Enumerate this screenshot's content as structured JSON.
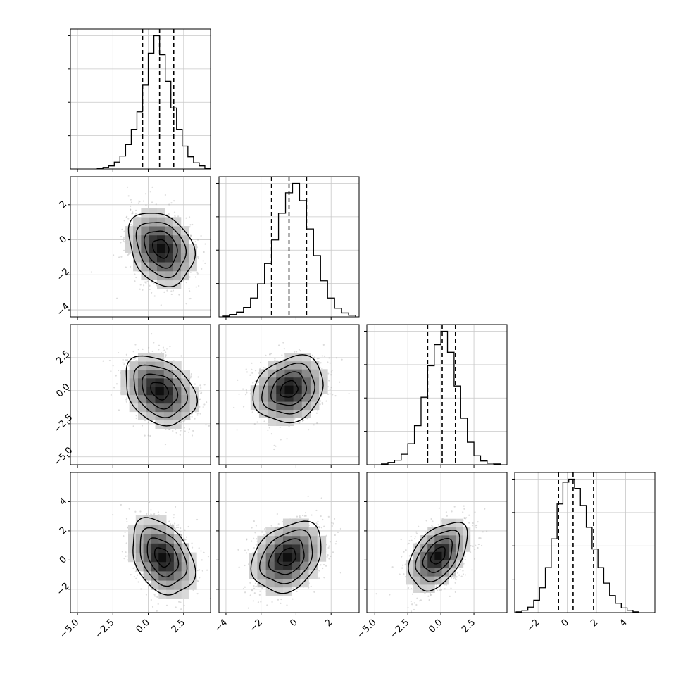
{
  "chart_data": {
    "type": "corner",
    "grid": true,
    "parameters": [
      {
        "ticks": [
          -5.0,
          -2.5,
          0.0,
          2.5
        ],
        "tick_labels": [
          "−5.0",
          "−2.5",
          "0.0",
          "2.5"
        ],
        "quantiles": [
          -0.4,
          0.8,
          1.8
        ],
        "hist": {
          "edges": [
            -3.6,
            -3.2,
            -2.8,
            -2.4,
            -2.0,
            -1.6,
            -1.2,
            -0.8,
            -0.4,
            0.0,
            0.4,
            0.8,
            1.2,
            1.6,
            2.0,
            2.4,
            2.8,
            3.2,
            3.6,
            4.0,
            4.4
          ],
          "counts": [
            1,
            2,
            4,
            9,
            17,
            32,
            52,
            75,
            110,
            152,
            175,
            150,
            115,
            80,
            52,
            30,
            16,
            8,
            4,
            1
          ]
        }
      },
      {
        "ticks": [
          -4,
          -2,
          0,
          2
        ],
        "tick_labels": [
          "−4",
          "−2",
          "0",
          "2"
        ],
        "quantiles": [
          -1.4,
          -0.4,
          0.6
        ],
        "hist": {
          "edges": [
            -4.2,
            -3.8,
            -3.4,
            -3.0,
            -2.6,
            -2.2,
            -1.8,
            -1.4,
            -1.0,
            -0.6,
            -0.2,
            0.2,
            0.6,
            1.0,
            1.4,
            1.8,
            2.2,
            2.6,
            3.0,
            3.4
          ],
          "counts": [
            1,
            3,
            6,
            12,
            24,
            42,
            68,
            98,
            132,
            158,
            170,
            148,
            112,
            78,
            46,
            24,
            11,
            5,
            2
          ]
        }
      },
      {
        "ticks": [
          -5.0,
          -2.5,
          0.0,
          2.5
        ],
        "tick_labels": [
          "−5.0",
          "−2.5",
          "0.0",
          "2.5"
        ],
        "quantiles": [
          -1.0,
          0.1,
          1.1
        ],
        "hist": {
          "edges": [
            -4.5,
            -4.0,
            -3.5,
            -3.0,
            -2.5,
            -2.0,
            -1.5,
            -1.0,
            -0.5,
            0.0,
            0.5,
            1.0,
            1.5,
            2.0,
            2.5,
            3.0,
            3.5,
            4.0,
            4.5
          ],
          "counts": [
            1,
            3,
            6,
            14,
            28,
            52,
            90,
            132,
            160,
            178,
            150,
            105,
            62,
            30,
            12,
            5,
            2,
            1
          ]
        }
      },
      {
        "ticks": [
          -2,
          0,
          2,
          4
        ],
        "tick_labels": [
          "−2",
          "0",
          "2",
          "4"
        ],
        "quantiles": [
          -0.6,
          0.4,
          1.8
        ],
        "hist": {
          "edges": [
            -3.5,
            -3.1,
            -2.7,
            -2.3,
            -1.9,
            -1.5,
            -1.1,
            -0.7,
            -0.3,
            0.1,
            0.5,
            0.9,
            1.3,
            1.7,
            2.1,
            2.5,
            2.9,
            3.3,
            3.7,
            4.1,
            4.5,
            4.9
          ],
          "counts": [
            1,
            3,
            7,
            16,
            32,
            58,
            95,
            140,
            168,
            172,
            160,
            138,
            110,
            82,
            58,
            38,
            22,
            12,
            6,
            3,
            1
          ]
        }
      }
    ],
    "panels": [
      {
        "col": 0,
        "row": 1,
        "cx": 0.9,
        "cy": -0.5,
        "sx": 1.15,
        "sy": 1.05,
        "rho": -0.25
      },
      {
        "col": 0,
        "row": 2,
        "cx": 0.8,
        "cy": 0.0,
        "sx": 1.25,
        "sy": 1.3,
        "rho": -0.3
      },
      {
        "col": 1,
        "row": 2,
        "cx": -0.4,
        "cy": 0.1,
        "sx": 1.0,
        "sy": 1.25,
        "rho": 0.2
      },
      {
        "col": 0,
        "row": 3,
        "cx": 1.0,
        "cy": 0.2,
        "sx": 1.1,
        "sy": 1.3,
        "rho": -0.35
      },
      {
        "col": 1,
        "row": 3,
        "cx": -0.5,
        "cy": 0.2,
        "sx": 1.0,
        "sy": 1.2,
        "rho": 0.3
      },
      {
        "col": 2,
        "row": 3,
        "cx": -0.2,
        "cy": 0.3,
        "sx": 1.1,
        "sy": 1.15,
        "rho": 0.45
      }
    ]
  }
}
